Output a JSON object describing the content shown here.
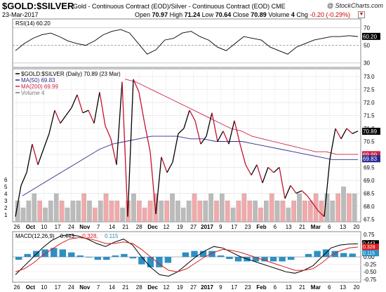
{
  "header": {
    "symbol": "$GOLD:$SILVER",
    "description": "Gold - Continuous Contract (EOD)/Silver - Continuous Contract (EOD) CME",
    "brand": "@ StockCharts.com",
    "date": "23-Mar-2017",
    "open_label": "Open",
    "open": "70.97",
    "high_label": "High",
    "high": "71.24",
    "low_label": "Low",
    "low": "70.64",
    "close_label": "Close",
    "close": "70.89",
    "volume_label": "Volume",
    "volume": "4",
    "chg_label": "Chg",
    "chg": "-0.20 (-0.29%)",
    "dropdown_icon": "triangle-down-icon"
  },
  "colors": {
    "price": "#c8102e",
    "price_up": "#000000",
    "ma50": "#2b2b8f",
    "ma200": "#cc2244",
    "volume_up": "#bbbbbb",
    "volume_down": "#f2a9a9",
    "macd": "#000000",
    "signal": "#d62020",
    "histogram": "#2d8fc4",
    "rsi": "#000000"
  },
  "chart_data": [
    {
      "type": "line",
      "panel": "RSI",
      "title": "RSI(14) 60.20",
      "last_value_label": "60.20",
      "y_ticks": [
        "70",
        "50",
        "30"
      ],
      "overbought": 70,
      "oversold": 30,
      "ylim": [
        25,
        80
      ],
      "series": [
        {
          "name": "RSI(14)",
          "values": [
            44,
            52,
            58,
            62,
            64,
            60,
            55,
            52,
            50,
            55,
            62,
            66,
            68,
            64,
            52,
            40,
            45,
            56,
            58,
            64,
            66,
            60,
            56,
            48,
            44,
            52,
            60,
            58,
            56,
            48,
            44,
            40,
            48,
            52,
            56,
            58,
            60,
            60,
            61,
            60
          ]
        }
      ]
    },
    {
      "type": "line",
      "panel": "Price",
      "legend": [
        "$GOLD:$SILVER (Daily) 70.89 (23 Mar)",
        "MA(50) 69.83",
        "MA(200) 69.99",
        "Volume 4"
      ],
      "y_ticks": [
        "73.0",
        "72.5",
        "72.0",
        "71.5",
        "71.0",
        "70.5",
        "70.0",
        "69.5",
        "69.0",
        "68.5",
        "68.0",
        "67.5"
      ],
      "ylim": [
        67.4,
        73.3
      ],
      "price_label": "70.89",
      "ma200_label": "69.99",
      "ma50_label": "69.83",
      "volume_ticks": [
        "6",
        "5",
        "4",
        "3",
        "2",
        "1"
      ],
      "x_labels": [
        "26",
        "Oct",
        "10",
        "17",
        "24",
        "Nov",
        "7",
        "14",
        "21",
        "28",
        "Dec",
        "12",
        "19",
        "27",
        "2017",
        "9",
        "17",
        "23",
        "Feb",
        "6",
        "13",
        "21",
        "Mar",
        "6",
        "13",
        "20"
      ],
      "series": [
        {
          "name": "$GOLD:$SILVER",
          "values": [
            67.6,
            68.8,
            69.3,
            70.4,
            69.6,
            70.2,
            70.8,
            71.7,
            71.2,
            71.5,
            71.8,
            72.3,
            71.6,
            71.7,
            71.2,
            72.4,
            71.1,
            70.6,
            69.6,
            72.8,
            67.6,
            72.9,
            72.4,
            71.2,
            70.1,
            67.7,
            69.9,
            69.3,
            69.7,
            70.8,
            71.0,
            71.7,
            71.3,
            70.4,
            70.7,
            71.6,
            70.5,
            70.9,
            70.4,
            71.3,
            70.4,
            69.6,
            69.2,
            69.6,
            68.9,
            69.5,
            69.3,
            69.5,
            68.3,
            68.8,
            68.5,
            68.6,
            68.4,
            68.1,
            67.8,
            67.6,
            69.8,
            71.0,
            70.6,
            71.0,
            70.8,
            70.9
          ]
        },
        {
          "name": "MA(50)",
          "values": [
            68.4,
            68.7,
            69.0,
            69.3,
            69.6,
            69.9,
            70.2,
            70.4,
            70.5,
            70.6,
            70.7,
            70.7,
            70.7,
            70.6,
            70.6,
            70.5,
            70.5,
            70.5,
            70.4,
            70.3,
            70.2,
            70.1,
            70.0,
            69.9,
            69.8,
            69.8,
            69.8
          ]
        },
        {
          "name": "MA(200)",
          "values": [
            72.9,
            72.8,
            72.6,
            72.4,
            72.2,
            72.0,
            71.8,
            71.6,
            71.4,
            71.2,
            71.0,
            70.9,
            70.7,
            70.6,
            70.5,
            70.4,
            70.3,
            70.2,
            70.1,
            70.1,
            70.0,
            70.0,
            70.0
          ]
        }
      ],
      "volume": [
        3,
        2,
        3,
        4,
        3,
        2,
        3,
        4,
        3,
        2,
        3,
        3,
        4,
        3,
        2,
        3,
        4,
        3,
        3,
        2,
        3,
        4,
        3,
        2,
        3,
        4,
        3,
        3,
        4,
        3,
        2,
        3,
        4,
        3,
        3,
        4,
        3,
        4,
        3,
        2,
        3,
        4,
        3,
        3,
        2,
        3,
        4,
        3,
        3,
        2,
        3,
        4,
        3,
        3,
        4,
        3,
        4,
        3,
        4,
        5,
        4,
        4
      ]
    },
    {
      "type": "line",
      "panel": "MACD",
      "title": "MACD(12,26,9) 0.443, 0.328, 0.115",
      "title_parts": [
        "MACD(12,26,9)",
        "0.443,",
        "0.328,",
        "0.115"
      ],
      "y_ticks": [
        "0.75",
        "0.50",
        "0.25",
        "0.00",
        "-0.25",
        "-0.50",
        "-0.75"
      ],
      "value_labels": [
        "0.443",
        "0.328",
        "0.115"
      ],
      "ylim": [
        -0.85,
        0.85
      ],
      "x_labels": [
        "26",
        "Oct",
        "10",
        "17",
        "24",
        "Nov",
        "7",
        "14",
        "21",
        "28",
        "Dec",
        "12",
        "19",
        "27",
        "2017",
        "9",
        "17",
        "23",
        "Feb",
        "6",
        "13",
        "21",
        "Mar",
        "6",
        "13",
        "20"
      ],
      "series": [
        {
          "name": "MACD",
          "values": [
            -0.6,
            -0.3,
            0.0,
            0.3,
            0.55,
            0.7,
            0.75,
            0.7,
            0.6,
            0.45,
            0.35,
            0.5,
            0.6,
            0.4,
            0.0,
            -0.35,
            -0.6,
            -0.65,
            -0.5,
            -0.25,
            0.0,
            0.2,
            0.35,
            0.3,
            0.15,
            0.0,
            -0.1,
            -0.2,
            -0.3,
            -0.4,
            -0.5,
            -0.55,
            -0.45,
            -0.3,
            0.0,
            0.3,
            0.4,
            0.43,
            0.44
          ]
        },
        {
          "name": "Signal",
          "values": [
            -0.5,
            -0.4,
            -0.2,
            0.05,
            0.25,
            0.45,
            0.6,
            0.65,
            0.62,
            0.55,
            0.45,
            0.45,
            0.5,
            0.45,
            0.25,
            0.0,
            -0.25,
            -0.45,
            -0.5,
            -0.4,
            -0.2,
            0.0,
            0.15,
            0.25,
            0.22,
            0.15,
            0.05,
            -0.05,
            -0.15,
            -0.25,
            -0.35,
            -0.45,
            -0.45,
            -0.4,
            -0.2,
            0.05,
            0.2,
            0.3,
            0.33
          ]
        },
        {
          "name": "Histogram",
          "values": [
            -0.1,
            0.1,
            0.2,
            0.25,
            0.3,
            0.25,
            0.15,
            0.05,
            -0.02,
            -0.1,
            -0.1,
            0.05,
            0.1,
            -0.05,
            -0.25,
            -0.35,
            -0.35,
            -0.2,
            0.0,
            0.15,
            0.2,
            0.2,
            0.2,
            0.05,
            -0.07,
            -0.15,
            -0.15,
            -0.15,
            -0.15,
            -0.15,
            -0.15,
            -0.1,
            0.0,
            0.1,
            0.2,
            0.25,
            0.2,
            0.13,
            0.11
          ]
        }
      ]
    }
  ]
}
